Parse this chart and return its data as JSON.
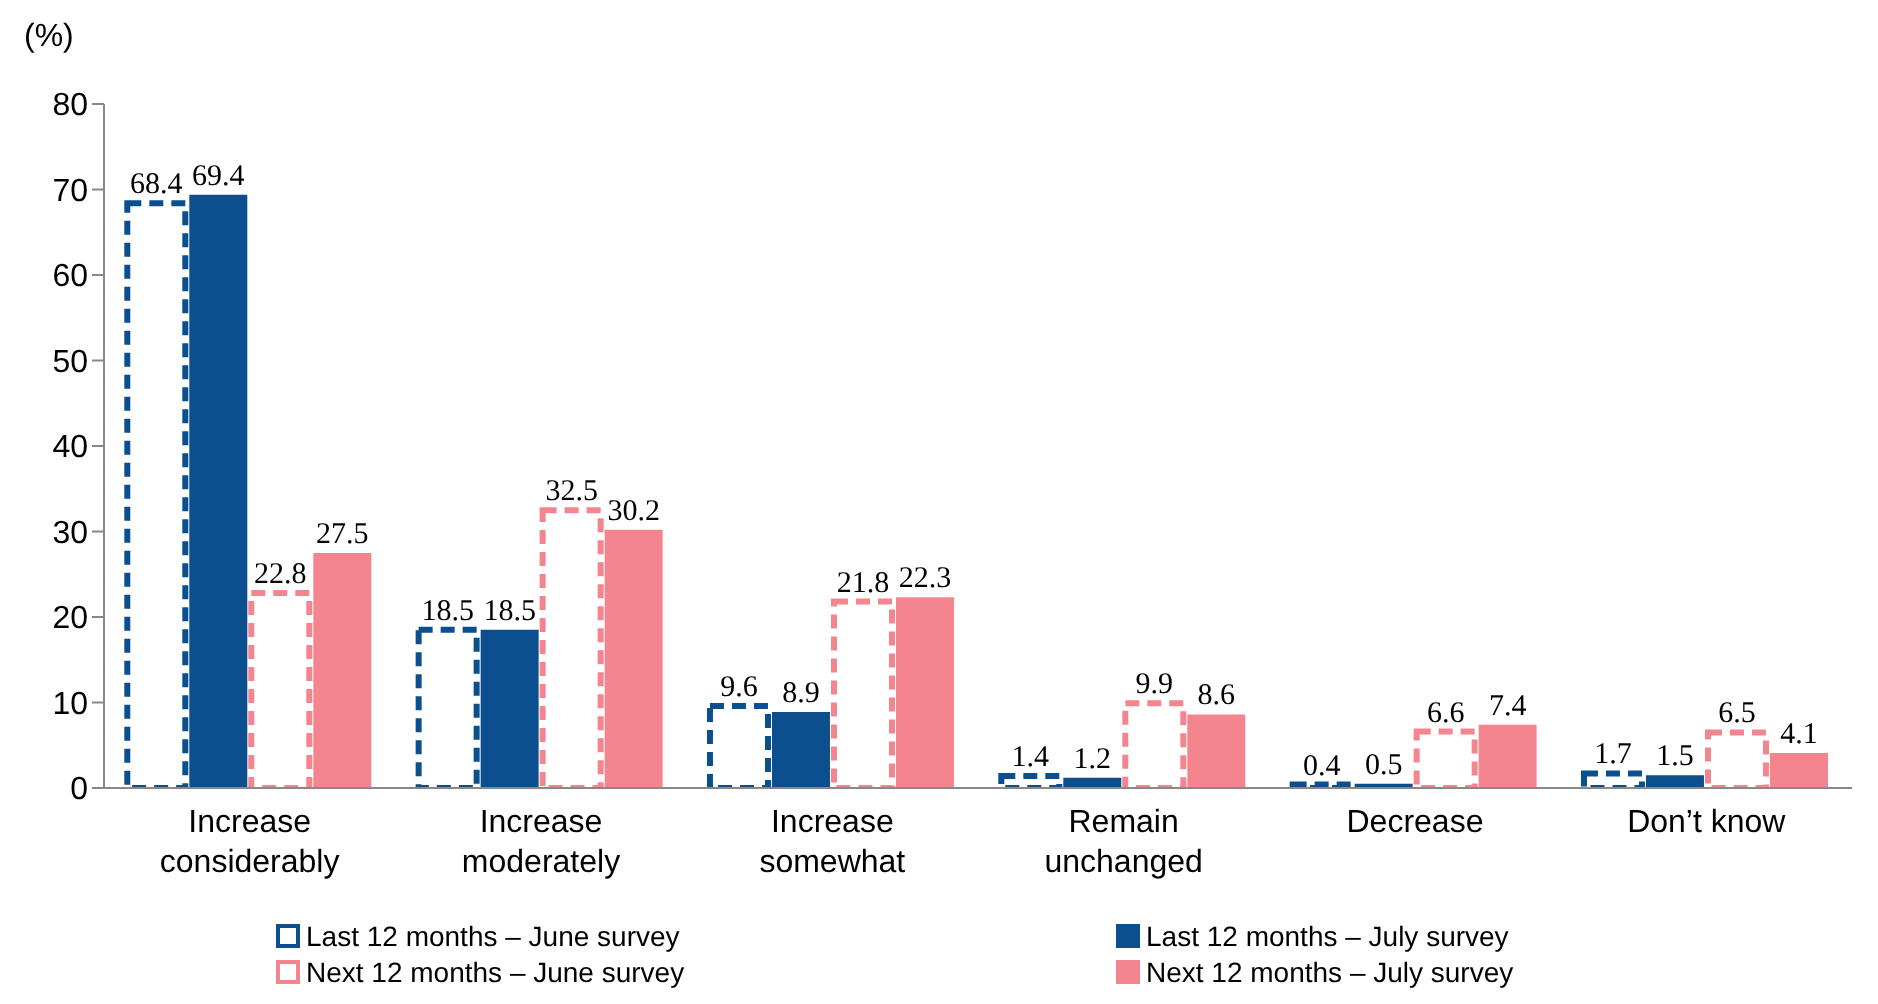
{
  "chart_data": {
    "type": "bar",
    "ylabel": "(%)",
    "categories": [
      "Increase considerably",
      "Increase moderately",
      "Increase somewhat",
      "Remain unchanged",
      "Decrease",
      "Don’t know"
    ],
    "series": [
      {
        "name": "Last 12 months – June survey",
        "color": "#0b4f8f",
        "line_style": "dashed",
        "values": [
          68.4,
          18.5,
          9.6,
          1.4,
          0.4,
          1.7
        ]
      },
      {
        "name": "Last 12 months – July survey",
        "color": "#0b4f8f",
        "line_style": "solid",
        "values": [
          69.4,
          18.5,
          8.9,
          1.2,
          0.5,
          1.5
        ]
      },
      {
        "name": "Next 12 months – June survey",
        "color": "#f4858f",
        "line_style": "dashed",
        "values": [
          22.8,
          32.5,
          21.8,
          9.9,
          6.6,
          6.5
        ]
      },
      {
        "name": "Next 12 months – July survey",
        "color": "#f4858f",
        "line_style": "solid",
        "values": [
          27.5,
          30.2,
          22.3,
          8.6,
          7.4,
          4.1
        ]
      }
    ],
    "ylim": [
      0,
      80
    ],
    "yticks": [
      0,
      10,
      20,
      30,
      40,
      50,
      60,
      70,
      80
    ],
    "grid": false,
    "legend": "bottom",
    "data_labels": true
  }
}
